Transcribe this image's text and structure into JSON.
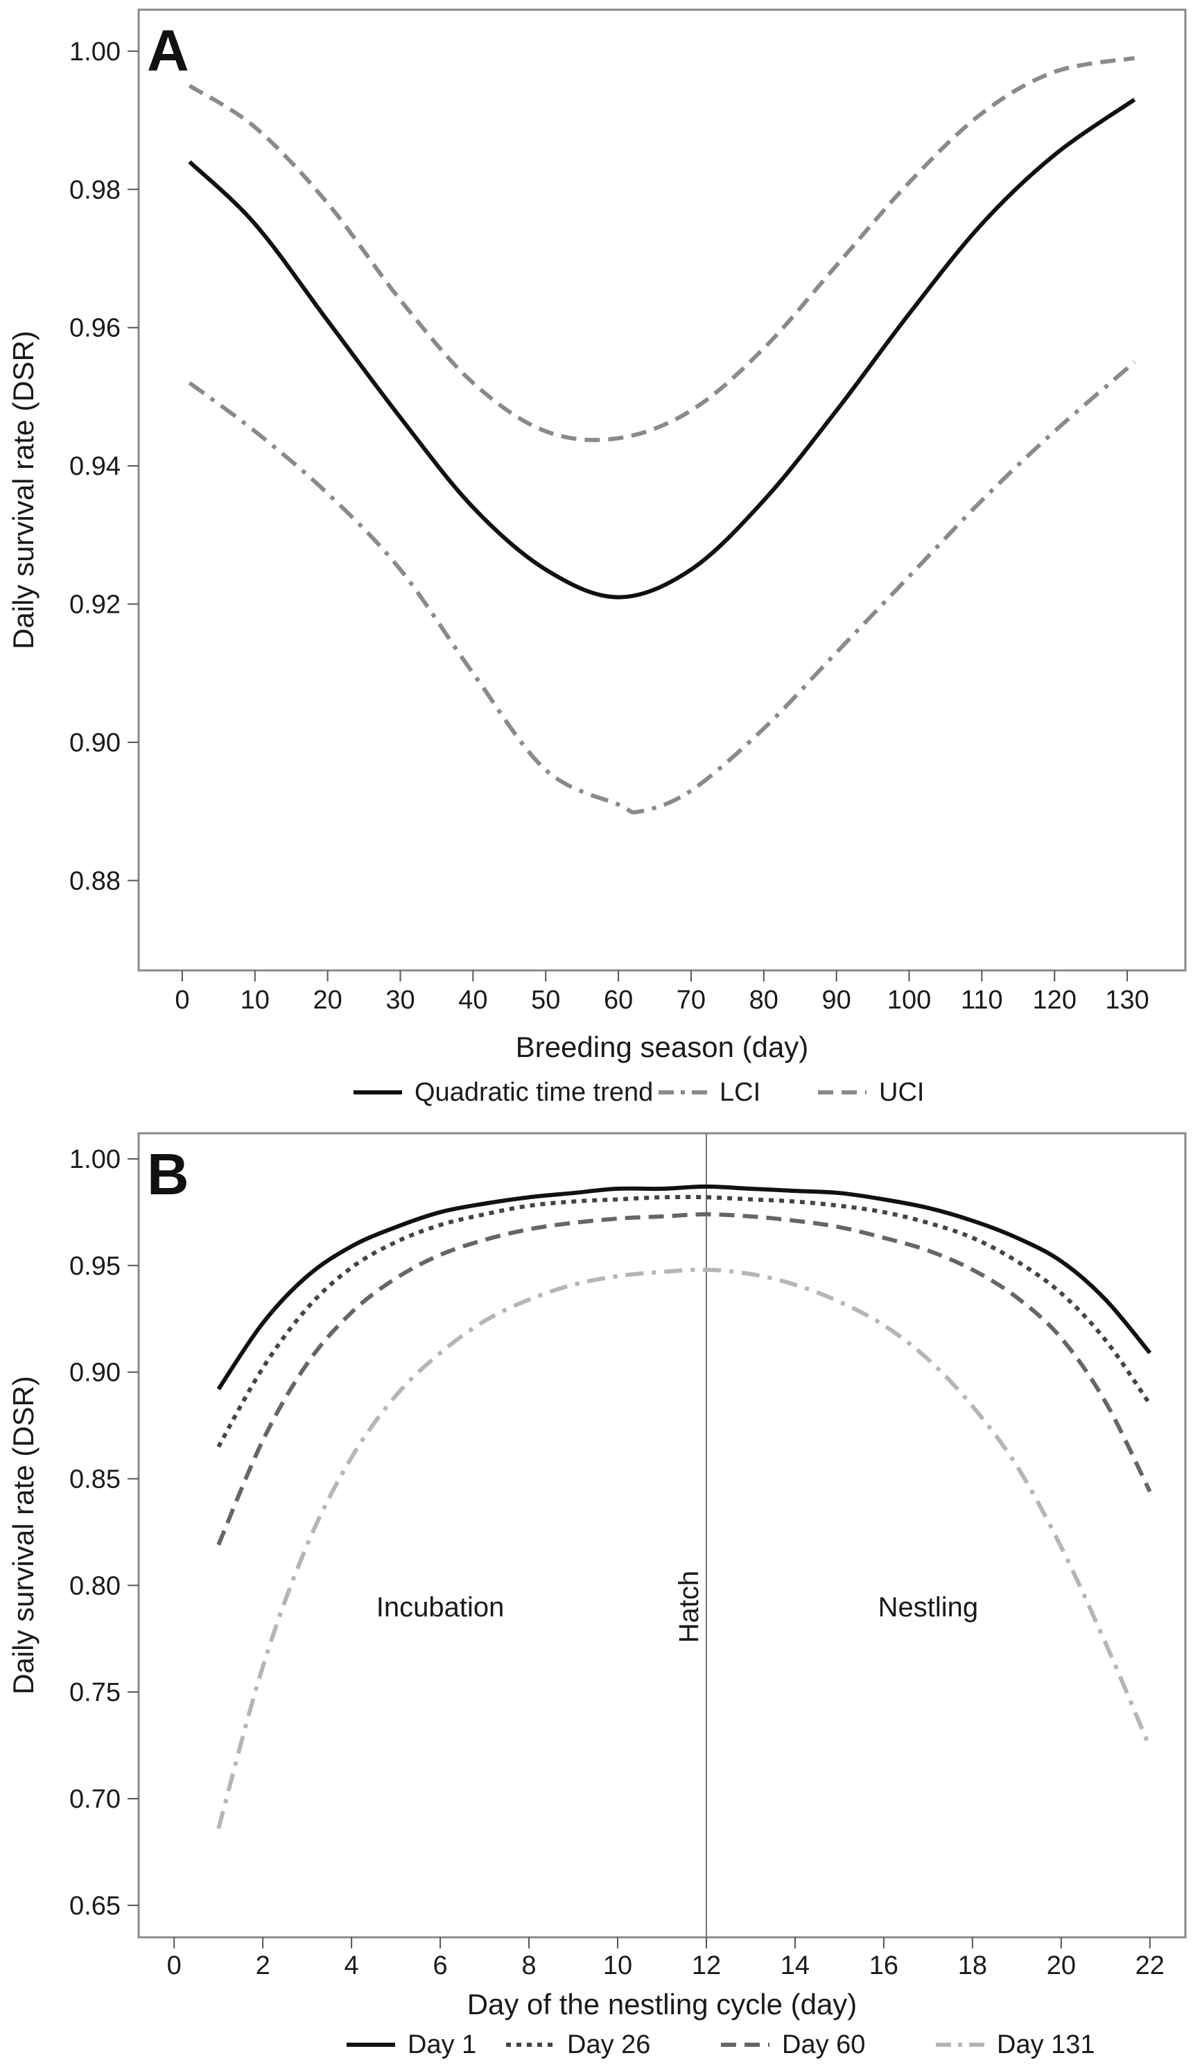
{
  "chart_data": [
    {
      "type": "line",
      "panel_label": "A",
      "xlabel": "Breeding season (day)",
      "ylabel": "Daily survival rate (DSR)",
      "xlim": [
        -6,
        138
      ],
      "ylim": [
        0.867,
        1.006
      ],
      "xticks": [
        0,
        10,
        20,
        30,
        40,
        50,
        60,
        70,
        80,
        90,
        100,
        110,
        120,
        130
      ],
      "yticks": [
        0.88,
        0.9,
        0.92,
        0.94,
        0.96,
        0.98,
        1.0
      ],
      "ytick_labels": [
        "0.88",
        "0.90",
        "0.92",
        "0.94",
        "0.96",
        "0.98",
        "1.00"
      ],
      "grid": false,
      "legend_position": "bottom",
      "series": [
        {
          "name": "Quadratic time trend",
          "color": "#111111",
          "dash": "solid",
          "x": [
            1,
            10,
            20,
            30,
            40,
            50,
            60,
            70,
            80,
            90,
            100,
            110,
            120,
            131
          ],
          "y": [
            0.984,
            0.975,
            0.961,
            0.947,
            0.934,
            0.925,
            0.921,
            0.925,
            0.935,
            0.948,
            0.962,
            0.975,
            0.985,
            0.993
          ]
        },
        {
          "name": "LCI",
          "color": "#8a8a8a",
          "dash": "dashdot",
          "x": [
            1,
            10,
            20,
            30,
            40,
            50,
            60,
            63,
            70,
            80,
            90,
            100,
            110,
            120,
            131
          ],
          "y": [
            0.952,
            0.945,
            0.936,
            0.925,
            0.91,
            0.896,
            0.891,
            0.89,
            0.893,
            0.902,
            0.913,
            0.924,
            0.935,
            0.945,
            0.955
          ]
        },
        {
          "name": "UCI",
          "color": "#8a8a8a",
          "dash": "dashed",
          "x": [
            1,
            10,
            20,
            30,
            40,
            50,
            60,
            70,
            80,
            90,
            100,
            110,
            120,
            131
          ],
          "y": [
            0.995,
            0.989,
            0.978,
            0.964,
            0.952,
            0.945,
            0.944,
            0.948,
            0.957,
            0.969,
            0.981,
            0.991,
            0.997,
            0.999
          ]
        }
      ]
    },
    {
      "type": "line",
      "panel_label": "B",
      "xlabel": "Day of the nestling cycle (day)",
      "ylabel": "Daily survival rate (DSR)",
      "xlim": [
        -0.8,
        22.8
      ],
      "ylim": [
        0.635,
        1.012
      ],
      "xticks": [
        0,
        2,
        4,
        6,
        8,
        10,
        12,
        14,
        16,
        18,
        20,
        22
      ],
      "yticks": [
        0.65,
        0.7,
        0.75,
        0.8,
        0.85,
        0.9,
        0.95,
        1.0
      ],
      "ytick_labels": [
        "0.65",
        "0.70",
        "0.75",
        "0.80",
        "0.85",
        "0.90",
        "0.95",
        "1.00"
      ],
      "grid": false,
      "legend_position": "bottom",
      "vline": {
        "x": 12,
        "label": "Hatch"
      },
      "annotations": [
        {
          "text": "Incubation",
          "x": 6,
          "y": 0.79
        },
        {
          "text": "Nestling",
          "x": 17,
          "y": 0.79
        }
      ],
      "series": [
        {
          "name": "Day 1",
          "color": "#111111",
          "dash": "solid",
          "x": [
            1,
            2,
            3,
            4,
            5,
            6,
            7,
            8,
            9,
            10,
            11,
            12,
            13,
            14,
            15,
            16,
            17,
            18,
            19,
            20,
            21,
            22
          ],
          "y": [
            0.892,
            0.923,
            0.945,
            0.959,
            0.968,
            0.975,
            0.979,
            0.982,
            0.984,
            0.986,
            0.986,
            0.987,
            0.986,
            0.985,
            0.984,
            0.981,
            0.977,
            0.971,
            0.963,
            0.952,
            0.934,
            0.909
          ]
        },
        {
          "name": "Day 26",
          "color": "#444444",
          "dash": "dotted",
          "x": [
            1,
            2,
            3,
            4,
            5,
            6,
            7,
            8,
            9,
            10,
            11,
            12,
            13,
            14,
            15,
            16,
            17,
            18,
            19,
            20,
            21,
            22
          ],
          "y": [
            0.865,
            0.902,
            0.93,
            0.949,
            0.961,
            0.969,
            0.974,
            0.978,
            0.98,
            0.981,
            0.982,
            0.982,
            0.981,
            0.98,
            0.978,
            0.975,
            0.97,
            0.963,
            0.952,
            0.937,
            0.915,
            0.885
          ]
        },
        {
          "name": "Day 60",
          "color": "#666666",
          "dash": "dashed",
          "x": [
            1,
            2,
            3,
            4,
            5,
            6,
            7,
            8,
            9,
            10,
            11,
            12,
            13,
            14,
            15,
            16,
            17,
            18,
            19,
            20,
            21,
            22
          ],
          "y": [
            0.819,
            0.868,
            0.904,
            0.928,
            0.944,
            0.955,
            0.962,
            0.967,
            0.97,
            0.972,
            0.973,
            0.974,
            0.973,
            0.971,
            0.968,
            0.963,
            0.957,
            0.948,
            0.935,
            0.916,
            0.886,
            0.844
          ]
        },
        {
          "name": "Day 131",
          "color": "#b5b5b5",
          "dash": "dashdot",
          "x": [
            1,
            2,
            3,
            4,
            5,
            6,
            7,
            8,
            9,
            10,
            11,
            12,
            13,
            14,
            15,
            16,
            17,
            18,
            19,
            20,
            21,
            22
          ],
          "y": [
            0.686,
            0.762,
            0.819,
            0.86,
            0.889,
            0.909,
            0.924,
            0.934,
            0.941,
            0.945,
            0.947,
            0.948,
            0.946,
            0.941,
            0.933,
            0.922,
            0.906,
            0.884,
            0.856,
            0.818,
            0.773,
            0.724
          ]
        }
      ]
    }
  ]
}
